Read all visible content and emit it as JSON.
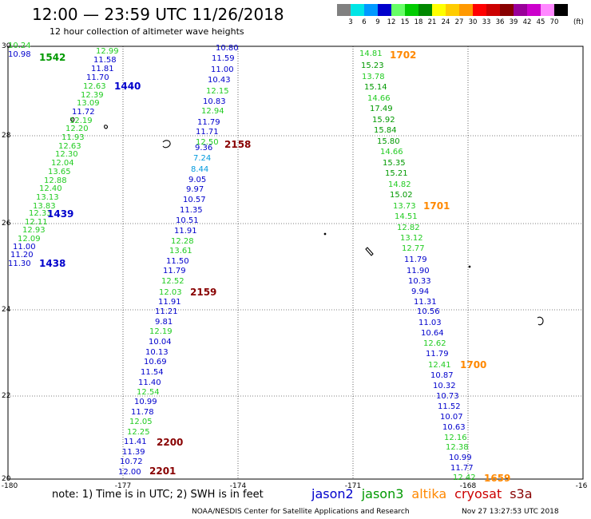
{
  "header": {
    "title": "12:00 — 23:59 UTC 11/26/2018",
    "subtitle": "12 hour collection of altimeter wave heights"
  },
  "legend": {
    "colors": [
      "#808080",
      "#00e5e5",
      "#0099ff",
      "#0000cc",
      "#66ff66",
      "#00cc00",
      "#008800",
      "#ffff00",
      "#ffcc00",
      "#ff9900",
      "#ff0000",
      "#cc0000",
      "#880000",
      "#990099",
      "#cc00cc",
      "#ff88ff",
      "#000000"
    ],
    "labels": [
      "3",
      "6",
      "9",
      "12",
      "15",
      "18",
      "21",
      "24",
      "27",
      "30",
      "33",
      "36",
      "39",
      "42",
      "45",
      "70"
    ],
    "unit": "(ft)"
  },
  "axes": {
    "lon_labels": [
      "-180",
      "-177",
      "-174",
      "-171",
      "-168",
      "-16"
    ],
    "lat_labels": [
      "30",
      "28",
      "26",
      "24",
      "22",
      "20"
    ]
  },
  "footer": {
    "note": "note:  1) Time is in UTC;  2) SWH is in feet",
    "satellites": [
      {
        "name": "jason2",
        "color": "#0000cc"
      },
      {
        "name": "jason3",
        "color": "#009900"
      },
      {
        "name": "altika",
        "color": "#ff8800"
      },
      {
        "name": "cryosat",
        "color": "#cc0000"
      },
      {
        "name": "s3a",
        "color": "#880000"
      }
    ],
    "credit": "NOAA/NESDIS Center for Satellite Applications and Research",
    "timestamp": "Nov 27 13:27:53 UTC 2018"
  },
  "colors": {
    "jason2": "#0000cc",
    "jason3": "#22cc22",
    "altika": "#ff8800",
    "s3a": "#880000",
    "time_jason3": "#009900"
  },
  "tracks": [
    {
      "name": "track-west",
      "obs": [
        {
          "v": "10.24",
          "c": "jason3"
        },
        {
          "v": "10.98",
          "c": "jason2"
        },
        {
          "v": "12.99",
          "c": "jason3"
        },
        {
          "v": "11.58",
          "c": "jason2"
        },
        {
          "v": "11.81",
          "c": "jason2"
        },
        {
          "v": "11.70",
          "c": "jason2"
        },
        {
          "v": "12.63",
          "c": "jason3"
        },
        {
          "v": "12.39",
          "c": "jason3"
        },
        {
          "v": "13.09",
          "c": "jason3"
        },
        {
          "v": "11.72",
          "c": "jason2"
        },
        {
          "v": "12.19",
          "c": "jason3"
        },
        {
          "v": "12.20",
          "c": "jason3"
        },
        {
          "v": "11.93",
          "c": "jason3"
        },
        {
          "v": "12.63",
          "c": "jason3"
        },
        {
          "v": "12.30",
          "c": "jason3"
        },
        {
          "v": "12.04",
          "c": "jason3"
        },
        {
          "v": "13.65",
          "c": "jason3"
        },
        {
          "v": "12.88",
          "c": "jason3"
        },
        {
          "v": "12.40",
          "c": "jason3"
        },
        {
          "v": "13.13",
          "c": "jason3"
        },
        {
          "v": "13.83",
          "c": "jason3"
        },
        {
          "v": "12.33",
          "c": "jason3"
        },
        {
          "v": "12.11",
          "c": "jason3"
        },
        {
          "v": "12.93",
          "c": "jason3"
        },
        {
          "v": "12.09",
          "c": "jason3"
        },
        {
          "v": "11.00",
          "c": "jason2"
        },
        {
          "v": "11.20",
          "c": "jason2"
        },
        {
          "v": "11.30",
          "c": "jason2"
        }
      ]
    },
    {
      "name": "track-central",
      "obs": [
        {
          "v": "10.80",
          "c": "jason2"
        },
        {
          "v": "11.59",
          "c": "jason2"
        },
        {
          "v": "11.00",
          "c": "jason2"
        },
        {
          "v": "10.43",
          "c": "jason2"
        },
        {
          "v": "12.15",
          "c": "jason3"
        },
        {
          "v": "10.83",
          "c": "jason2"
        },
        {
          "v": "12.94",
          "c": "jason3"
        },
        {
          "v": "11.79",
          "c": "jason2"
        },
        {
          "v": "11.71",
          "c": "jason2"
        },
        {
          "v": "12.50",
          "c": "jason3"
        },
        {
          "v": "9.36",
          "c": "jason2"
        },
        {
          "v": "7.24",
          "c": "cyan"
        },
        {
          "v": "8.44",
          "c": "cyan"
        },
        {
          "v": "9.05",
          "c": "jason2"
        },
        {
          "v": "9.97",
          "c": "jason2"
        },
        {
          "v": "10.57",
          "c": "jason2"
        },
        {
          "v": "11.35",
          "c": "jason2"
        },
        {
          "v": "10.51",
          "c": "jason2"
        },
        {
          "v": "11.91",
          "c": "jason2"
        },
        {
          "v": "12.28",
          "c": "jason3"
        },
        {
          "v": "13.61",
          "c": "jason3"
        },
        {
          "v": "11.50",
          "c": "jason2"
        },
        {
          "v": "11.79",
          "c": "jason2"
        },
        {
          "v": "12.52",
          "c": "jason3"
        },
        {
          "v": "12.03",
          "c": "jason3"
        },
        {
          "v": "11.91",
          "c": "jason2"
        },
        {
          "v": "11.21",
          "c": "jason2"
        },
        {
          "v": "9.81",
          "c": "jason2"
        },
        {
          "v": "12.19",
          "c": "jason3"
        },
        {
          "v": "10.04",
          "c": "jason2"
        },
        {
          "v": "10.13",
          "c": "jason2"
        },
        {
          "v": "10.69",
          "c": "jason2"
        },
        {
          "v": "11.54",
          "c": "jason2"
        },
        {
          "v": "11.40",
          "c": "jason2"
        },
        {
          "v": "12.54",
          "c": "jason3"
        },
        {
          "v": "10.99",
          "c": "jason2"
        },
        {
          "v": "11.78",
          "c": "jason2"
        },
        {
          "v": "12.05",
          "c": "jason3"
        },
        {
          "v": "12.25",
          "c": "jason3"
        },
        {
          "v": "11.41",
          "c": "jason2"
        },
        {
          "v": "11.39",
          "c": "jason2"
        },
        {
          "v": "10.72",
          "c": "jason2"
        },
        {
          "v": "12.00",
          "c": "jason2"
        }
      ]
    },
    {
      "name": "track-east",
      "obs": [
        {
          "v": "14.81",
          "c": "jason3"
        },
        {
          "v": "15.23",
          "c": "time_jason3"
        },
        {
          "v": "13.78",
          "c": "jason3"
        },
        {
          "v": "15.14",
          "c": "time_jason3"
        },
        {
          "v": "14.66",
          "c": "jason3"
        },
        {
          "v": "17.49",
          "c": "time_jason3"
        },
        {
          "v": "15.92",
          "c": "time_jason3"
        },
        {
          "v": "15.84",
          "c": "time_jason3"
        },
        {
          "v": "15.80",
          "c": "time_jason3"
        },
        {
          "v": "14.66",
          "c": "jason3"
        },
        {
          "v": "15.35",
          "c": "time_jason3"
        },
        {
          "v": "15.21",
          "c": "time_jason3"
        },
        {
          "v": "14.82",
          "c": "jason3"
        },
        {
          "v": "15.02",
          "c": "time_jason3"
        },
        {
          "v": "13.73",
          "c": "jason3"
        },
        {
          "v": "14.51",
          "c": "jason3"
        },
        {
          "v": "12.82",
          "c": "jason3"
        },
        {
          "v": "13.12",
          "c": "jason3"
        },
        {
          "v": "12.77",
          "c": "jason3"
        },
        {
          "v": "11.79",
          "c": "jason2"
        },
        {
          "v": "11.90",
          "c": "jason2"
        },
        {
          "v": "10.33",
          "c": "jason2"
        },
        {
          "v": "9.94",
          "c": "jason2"
        },
        {
          "v": "11.31",
          "c": "jason2"
        },
        {
          "v": "10.56",
          "c": "jason2"
        },
        {
          "v": "11.03",
          "c": "jason2"
        },
        {
          "v": "10.64",
          "c": "jason2"
        },
        {
          "v": "12.62",
          "c": "jason3"
        },
        {
          "v": "11.79",
          "c": "jason2"
        },
        {
          "v": "12.41",
          "c": "jason3"
        },
        {
          "v": "10.87",
          "c": "jason2"
        },
        {
          "v": "10.32",
          "c": "jason2"
        },
        {
          "v": "10.73",
          "c": "jason2"
        },
        {
          "v": "11.52",
          "c": "jason2"
        },
        {
          "v": "10.07",
          "c": "jason2"
        },
        {
          "v": "10.63",
          "c": "jason2"
        },
        {
          "v": "12.16",
          "c": "jason3"
        },
        {
          "v": "12.38",
          "c": "jason3"
        },
        {
          "v": "10.99",
          "c": "jason2"
        },
        {
          "v": "11.77",
          "c": "jason2"
        },
        {
          "v": "12.42",
          "c": "jason3"
        }
      ]
    }
  ],
  "times": [
    {
      "t": "1542",
      "c": "time_jason3"
    },
    {
      "t": "1440",
      "c": "jason2"
    },
    {
      "t": "1439",
      "c": "jason2"
    },
    {
      "t": "1438",
      "c": "jason2"
    },
    {
      "t": "2158",
      "c": "s3a"
    },
    {
      "t": "2159",
      "c": "s3a"
    },
    {
      "t": "2200",
      "c": "s3a"
    },
    {
      "t": "2201",
      "c": "s3a"
    },
    {
      "t": "1702",
      "c": "altika"
    },
    {
      "t": "1701",
      "c": "altika"
    },
    {
      "t": "1700",
      "c": "altika"
    },
    {
      "t": "1659",
      "c": "altika"
    }
  ]
}
